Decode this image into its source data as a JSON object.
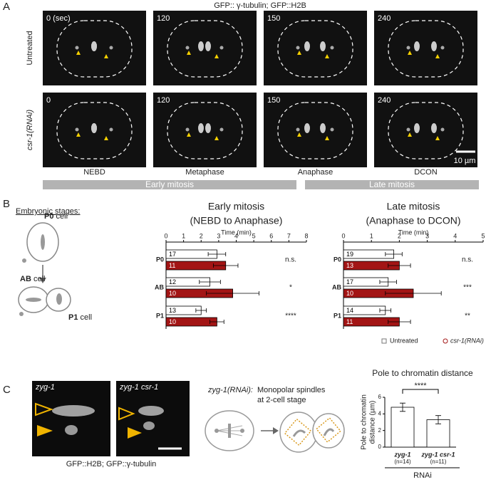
{
  "panel_a": {
    "label": "A",
    "title": "GFP:: γ-tubulin; GFP::H2B",
    "rows": [
      {
        "label": "Untreated",
        "times": [
          "0 (sec)",
          "120",
          "150",
          "240"
        ]
      },
      {
        "label": "csr-1(RNAi)",
        "times": [
          "0",
          "120",
          "150",
          "240"
        ]
      }
    ],
    "stages": [
      "NEBD",
      "Metaphase",
      "Anaphase",
      "DCON"
    ],
    "scale_bar": "10 µm",
    "phases": [
      "Early mitosis",
      "Late mitosis"
    ]
  },
  "panel_b": {
    "label": "B",
    "heading": "Embryonic stages:",
    "cells": [
      {
        "name": "P0",
        "word": "cell"
      },
      {
        "name": "AB",
        "word": "cell"
      },
      {
        "name": "P1",
        "word": "cell"
      }
    ]
  },
  "panel_c": {
    "label": "C",
    "images": [
      "zyg-1",
      "zyg-1 csr-1"
    ],
    "caption": "GFP::H2B; GFP::γ-tubulin",
    "scheme_title": "zyg-1(RNAi):",
    "scheme_note": [
      "Monopolar spindles",
      "at 2-cell stage"
    ]
  },
  "chart_data": [
    {
      "type": "bar",
      "orientation": "horizontal",
      "title": "Early mitosis",
      "subtitle": "(NEBD to Anaphase)",
      "x_label": "Time (min)",
      "categories": [
        "P0",
        "AB",
        "P1"
      ],
      "series": [
        {
          "name": "Untreated",
          "color": "#ffffff",
          "values": [
            2.9,
            2.5,
            2.0
          ],
          "errors": [
            0.5,
            0.6,
            0.3
          ],
          "n": [
            17,
            12,
            13
          ]
        },
        {
          "name": "csr-1(RNAi)",
          "color": "#a31515",
          "values": [
            3.4,
            3.8,
            2.9
          ],
          "errors": [
            0.7,
            1.5,
            0.4
          ],
          "n": [
            11,
            10,
            10
          ]
        }
      ],
      "annotations": [
        "n.s.",
        "*",
        "****"
      ],
      "xlim": [
        0,
        8
      ],
      "xticks": [
        0,
        1,
        2,
        3,
        4,
        5,
        6,
        7,
        8
      ]
    },
    {
      "type": "bar",
      "orientation": "horizontal",
      "title": "Late mitosis",
      "subtitle": "(Anaphase to DCON)",
      "x_label": "Time (min)",
      "categories": [
        "P0",
        "AB",
        "P1"
      ],
      "series": [
        {
          "name": "Untreated",
          "color": "#ffffff",
          "values": [
            1.8,
            1.6,
            1.5
          ],
          "errors": [
            0.3,
            0.3,
            0.2
          ],
          "n": [
            19,
            17,
            14
          ]
        },
        {
          "name": "csr-1(RNAi)",
          "color": "#a31515",
          "values": [
            2.0,
            2.5,
            2.0
          ],
          "errors": [
            0.4,
            1.0,
            0.4
          ],
          "n": [
            13,
            10,
            11
          ]
        }
      ],
      "annotations": [
        "n.s.",
        "***",
        "**"
      ],
      "xlim": [
        0,
        5
      ],
      "xticks": [
        0,
        1,
        2,
        3,
        4,
        5
      ]
    },
    {
      "type": "bar",
      "orientation": "vertical",
      "title": "Pole to chromatin distance",
      "y_label": [
        "Pole to chromatin",
        "distance (µm)"
      ],
      "categories": [
        "zyg-1",
        "zyg-1 csr-1"
      ],
      "category_notes": [
        "(n=14)",
        "(n=11)"
      ],
      "group_label": "RNAi",
      "values": [
        4.8,
        3.3
      ],
      "errors": [
        0.5,
        0.5
      ],
      "color": "#ffffff",
      "ylim": [
        0,
        6
      ],
      "yticks": [
        0,
        2,
        4,
        6
      ],
      "annotation": "****"
    }
  ]
}
